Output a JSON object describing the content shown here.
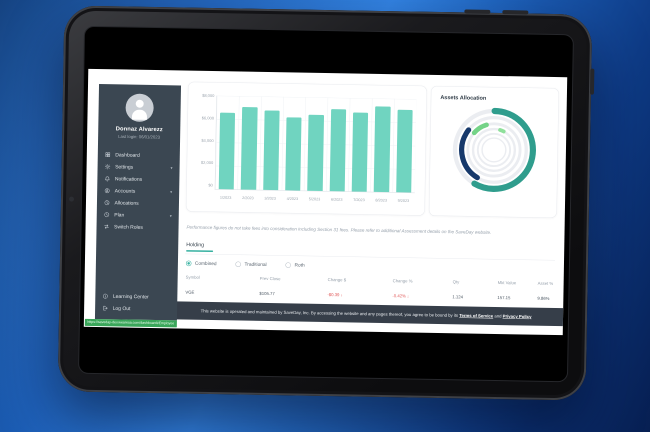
{
  "colors": {
    "accent_teal": "#35b0a0",
    "bar_teal": "#70d4c0",
    "ring_teal": "#2f9d8d",
    "ring_navy": "#17396b",
    "ring_green": "#74d387",
    "negative_red": "#e05555",
    "sidebar_bg": "#3b4752",
    "footer_bg": "#363e49",
    "link_preview_bg": "#3aa65a"
  },
  "sidebar": {
    "user": {
      "name": "Donnaz Alvarezz",
      "last_login": "Last login: 06/01/2023"
    },
    "items": [
      {
        "label": "Dashboard",
        "icon": "dashboard-icon",
        "expandable": false
      },
      {
        "label": "Settings",
        "icon": "gear-icon",
        "expandable": true
      },
      {
        "label": "Notifications",
        "icon": "bell-icon",
        "expandable": false
      },
      {
        "label": "Accounts",
        "icon": "accounts-icon",
        "expandable": true
      },
      {
        "label": "Allocations",
        "icon": "allocations-icon",
        "expandable": false
      },
      {
        "label": "Plan",
        "icon": "plan-icon",
        "expandable": true
      },
      {
        "label": "Switch Roles",
        "icon": "switch-icon",
        "expandable": false
      }
    ],
    "footer_items": [
      {
        "label": "Learning Center",
        "icon": "learning-icon"
      },
      {
        "label": "Log Out",
        "icon": "logout-icon"
      }
    ]
  },
  "main": {
    "disclaimer": "Performance figures do not take fees into consideration including Section 31 fees. Please refer to additional Assessment details on the SaveDay website.",
    "holding": {
      "tab_label": "Holding",
      "filters": [
        {
          "label": "Combined",
          "selected": true
        },
        {
          "label": "Traditional",
          "selected": false
        },
        {
          "label": "Roth",
          "selected": false
        }
      ],
      "table": {
        "columns": [
          "Symbol",
          "Prev Close",
          "Change $",
          "Change %",
          "Qty",
          "Mkt Value",
          "Asset %"
        ],
        "rows": [
          {
            "symbol": "VGE",
            "prev_close": "$105.77",
            "change_usd": "-$0.39",
            "change_pct": "-0.42%",
            "qty": "1.124",
            "mkt_value": "157.15",
            "asset_pct": "9.86%",
            "direction": "down"
          }
        ]
      }
    }
  },
  "footer": {
    "text_before": "This website is operated and maintained by SaveDay, Inc. By accessing the website and any pages thereof, you agree to be bound by its ",
    "link1": "Terms of Service",
    "text_middle": " and ",
    "link2": "Privacy Policy",
    "status_link": "https://saveday-dev.wearesa.com/dashboard#Employee"
  },
  "chart_data": [
    {
      "type": "bar",
      "title": "",
      "categories": [
        "1/2023",
        "2/2023",
        "3/2023",
        "4/2023",
        "5/2023",
        "6/2023",
        "7/2023",
        "8/2023",
        "9/2023"
      ],
      "values": [
        6550,
        7050,
        6800,
        6250,
        6500,
        7000,
        6750,
        7300,
        7050
      ],
      "ylim": [
        0,
        8000
      ],
      "ytick_labels": [
        "$8,000",
        "$6,000",
        "$4,000",
        "$2,000",
        "$0"
      ],
      "xlabel": "",
      "ylabel": "",
      "grid": true,
      "legend": false,
      "bar_color": "#70d4c0"
    },
    {
      "type": "donut-rings",
      "title": "Assets Allocation",
      "legend": false,
      "base_ring_color": "#ebedf1",
      "base_rings": [
        {
          "radius": 82,
          "width": 9
        },
        {
          "radius": 68,
          "width": 7
        },
        {
          "radius": 55,
          "width": 6
        },
        {
          "radius": 44,
          "width": 5
        },
        {
          "radius": 34,
          "width": 4
        },
        {
          "radius": 25,
          "width": 3
        }
      ],
      "rings": [
        {
          "name": "segment-1",
          "color": "#2f9d8d",
          "percent": 58,
          "start_deg": 0,
          "radius": 82,
          "width": 13
        },
        {
          "name": "segment-2",
          "color": "#17396b",
          "percent": 27,
          "start_deg": 210,
          "radius": 68,
          "width": 11
        },
        {
          "name": "segment-3",
          "color": "#74d387",
          "percent": 9,
          "start_deg": 310,
          "radius": 55,
          "width": 10
        },
        {
          "name": "segment-4",
          "color": "#8fe09b",
          "percent": 3,
          "start_deg": 16,
          "radius": 44,
          "width": 8
        }
      ]
    }
  ]
}
